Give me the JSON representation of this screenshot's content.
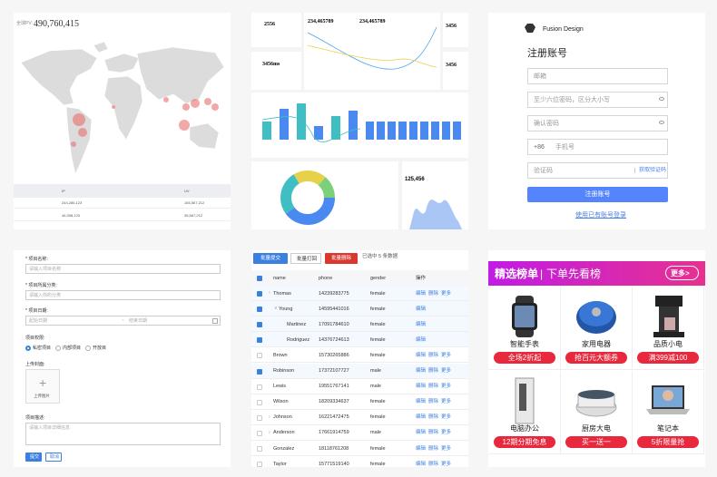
{
  "map_panel": {
    "label": "全球PV:",
    "value": "490,760,415",
    "table": {
      "headers": [
        "IP",
        "UV"
      ],
      "rows": [
        [
          "244,286,123",
          "165,567,212"
        ],
        [
          "46,398,123",
          "35,567,212"
        ]
      ]
    }
  },
  "dashboard_panel": {
    "cards": [
      "2556",
      "3456ms",
      "3456",
      "3456"
    ],
    "totals": [
      "234,465789",
      "234,465789"
    ],
    "area_value": "125,456"
  },
  "register_panel": {
    "brand": "Fusion Design",
    "title": "注册账号",
    "email": "邮箱",
    "password": "至少六位密码，区分大小写",
    "confirm": "确认密码",
    "prefix": "+86",
    "phone": "手机号",
    "code": "验证码",
    "get_code": "获取验证码",
    "submit": "注册账号",
    "login_link": "使用已有账号登录"
  },
  "form_panel": {
    "fields": [
      {
        "label": "* 项目名称:",
        "placeholder": "请输入项目名称"
      },
      {
        "label": "* 项目所属分类:",
        "placeholder": "请输入你的分类"
      }
    ],
    "date_label": "* 项目日期:",
    "date_start": "起始日期",
    "date_sep": "~",
    "date_end": "结束日期",
    "perm_label": "项目权限:",
    "perm_options": [
      "私密项目",
      "内部项目",
      "开放目"
    ],
    "upload_label": "上传封面:",
    "upload_text": "上传图片",
    "desc_label": "项目描述:",
    "desc_placeholder": "请输入项目详细信息",
    "submit": "提交",
    "cancel": "取消"
  },
  "table_panel": {
    "actions": [
      "批量提交",
      "批量打回",
      "批量删除"
    ],
    "selected": "已选中 5 条数据",
    "columns": [
      "name",
      "phone",
      "gender",
      "操作"
    ],
    "rows": [
      {
        "name": "Thomas",
        "phone": "14239283775",
        "gender": "female",
        "ops": [
          "编辑",
          "删除",
          "更多"
        ],
        "checked": true
      },
      {
        "name": "Young",
        "phone": "14595441016",
        "gender": "female",
        "ops": [
          "编辑"
        ],
        "checked": true
      },
      {
        "name": "Martinez",
        "phone": "17091784610",
        "gender": "female",
        "ops": [
          "编辑"
        ],
        "checked": true
      },
      {
        "name": "Rodriguez",
        "phone": "14376724613",
        "gender": "female",
        "ops": [
          "编辑"
        ],
        "checked": true
      },
      {
        "name": "Brown",
        "phone": "15730265886",
        "gender": "female",
        "ops": [
          "编辑",
          "删除",
          "更多"
        ],
        "checked": false
      },
      {
        "name": "Robinson",
        "phone": "17372107727",
        "gender": "male",
        "ops": [
          "编辑",
          "删除",
          "更多"
        ],
        "checked": true
      },
      {
        "name": "Lewis",
        "phone": "19551767141",
        "gender": "male",
        "ops": [
          "编辑",
          "删除",
          "更多"
        ],
        "checked": false
      },
      {
        "name": "Wilson",
        "phone": "18209334637",
        "gender": "female",
        "ops": [
          "编辑",
          "删除",
          "更多"
        ],
        "checked": false
      },
      {
        "name": "Johnson",
        "phone": "16221472475",
        "gender": "female",
        "ops": [
          "编辑",
          "删除",
          "更多"
        ],
        "checked": false
      },
      {
        "name": "Anderson",
        "phone": "17661914759",
        "gender": "male",
        "ops": [
          "编辑",
          "删除",
          "更多"
        ],
        "checked": false
      },
      {
        "name": "Gonzalez",
        "phone": "18118761208",
        "gender": "female",
        "ops": [
          "编辑",
          "删除",
          "更多"
        ],
        "checked": false
      },
      {
        "name": "Taylor",
        "phone": "15771519140",
        "gender": "female",
        "ops": [
          "编辑",
          "删除",
          "更多"
        ],
        "checked": false
      }
    ]
  },
  "promo_panel": {
    "title": "精选榜单",
    "subtitle": "下单先看榜",
    "more": "更多>",
    "items": [
      {
        "name": "智能手表",
        "tag": "全场2折起"
      },
      {
        "name": "家用电器",
        "tag": "抢百元大额券"
      },
      {
        "name": "品质小电",
        "tag": "满399减100"
      },
      {
        "name": "电脑办公",
        "tag": "12期分期免息"
      },
      {
        "name": "厨房大电",
        "tag": "买一送一"
      },
      {
        "name": "笔记本",
        "tag": "5折限量抢"
      }
    ]
  }
}
